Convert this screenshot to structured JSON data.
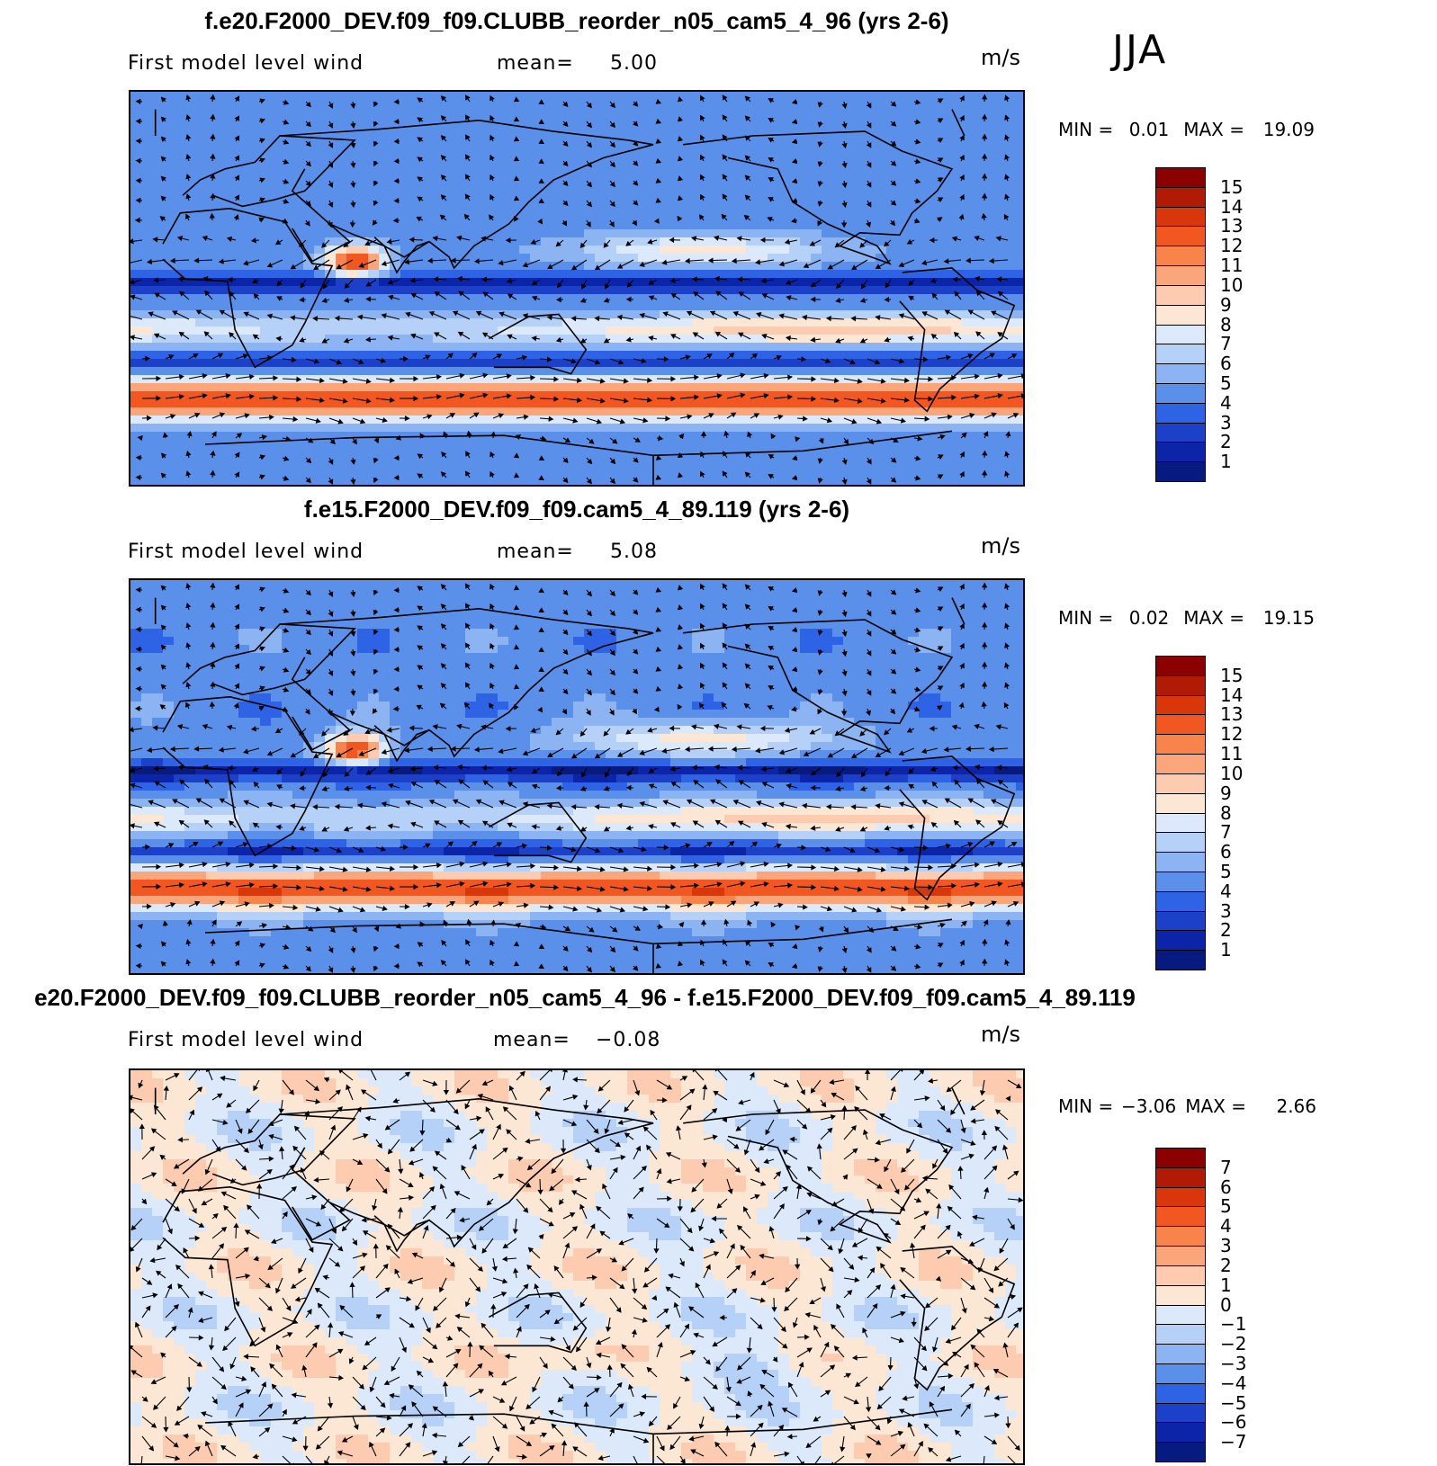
{
  "season": "JJA",
  "panels": [
    {
      "title": "f.e20.F2000_DEV.f09_f09.CLUBB_reorder_n05_cam5_4_96 (yrs 2-6)",
      "field_label": "First model level wind",
      "mean_label": "mean=",
      "mean_value": "5.00",
      "units": "m/s",
      "min_label": "MIN =",
      "min_value": "0.01",
      "max_label": "MAX =",
      "max_value": "19.09",
      "colorbar": {
        "labels": [
          "15",
          "14",
          "13",
          "12",
          "11",
          "10",
          "9",
          "8",
          "7",
          "6",
          "5",
          "4",
          "3",
          "2",
          "1"
        ],
        "colors": [
          "#8b0000",
          "#b11b06",
          "#d9370b",
          "#f25722",
          "#f8844c",
          "#fba57a",
          "#fdcbb0",
          "#fce6d4",
          "#dbe9fb",
          "#b6d1f7",
          "#8cb4f2",
          "#5a8fea",
          "#2e63e6",
          "#1c40c8",
          "#0c24a8",
          "#061a80"
        ]
      },
      "map": {
        "type": "wind-speed",
        "scale": "full"
      }
    },
    {
      "title": "f.e15.F2000_DEV.f09_f09.cam5_4_89.119 (yrs 2-6)",
      "field_label": "First model level wind",
      "mean_label": "mean=",
      "mean_value": "5.08",
      "units": "m/s",
      "min_label": "MIN =",
      "min_value": "0.02",
      "max_label": "MAX =",
      "max_value": "19.15",
      "colorbar": {
        "labels": [
          "15",
          "14",
          "13",
          "12",
          "11",
          "10",
          "9",
          "8",
          "7",
          "6",
          "5",
          "4",
          "3",
          "2",
          "1"
        ],
        "colors": [
          "#8b0000",
          "#b11b06",
          "#d9370b",
          "#f25722",
          "#f8844c",
          "#fba57a",
          "#fdcbb0",
          "#fce6d4",
          "#dbe9fb",
          "#b6d1f7",
          "#8cb4f2",
          "#5a8fea",
          "#2e63e6",
          "#1c40c8",
          "#0c24a8",
          "#061a80"
        ]
      },
      "map": {
        "type": "wind-speed",
        "scale": "full"
      }
    },
    {
      "title": "e20.F2000_DEV.f09_f09.CLUBB_reorder_n05_cam5_4_96 - f.e15.F2000_DEV.f09_f09.cam5_4_89.119",
      "field_label": "First model level wind",
      "mean_label": "mean=",
      "mean_value": "−0.08",
      "units": "m/s",
      "min_label": "MIN =",
      "min_value": "−3.06",
      "max_label": "MAX =",
      "max_value": "2.66",
      "colorbar": {
        "labels": [
          "7",
          "6",
          "5",
          "4",
          "3",
          "2",
          "1",
          "0",
          "−1",
          "−2",
          "−3",
          "−4",
          "−5",
          "−6",
          "−7"
        ],
        "colors": [
          "#8b0000",
          "#b11b06",
          "#d9370b",
          "#f25722",
          "#f8844c",
          "#fba57a",
          "#fdcbb0",
          "#fce6d4",
          "#dbe9fb",
          "#b6d1f7",
          "#8cb4f2",
          "#5a8fea",
          "#2e63e6",
          "#1c40c8",
          "#0c24a8",
          "#061a80"
        ]
      },
      "map": {
        "type": "wind-difference",
        "scale": "diff"
      }
    }
  ]
}
